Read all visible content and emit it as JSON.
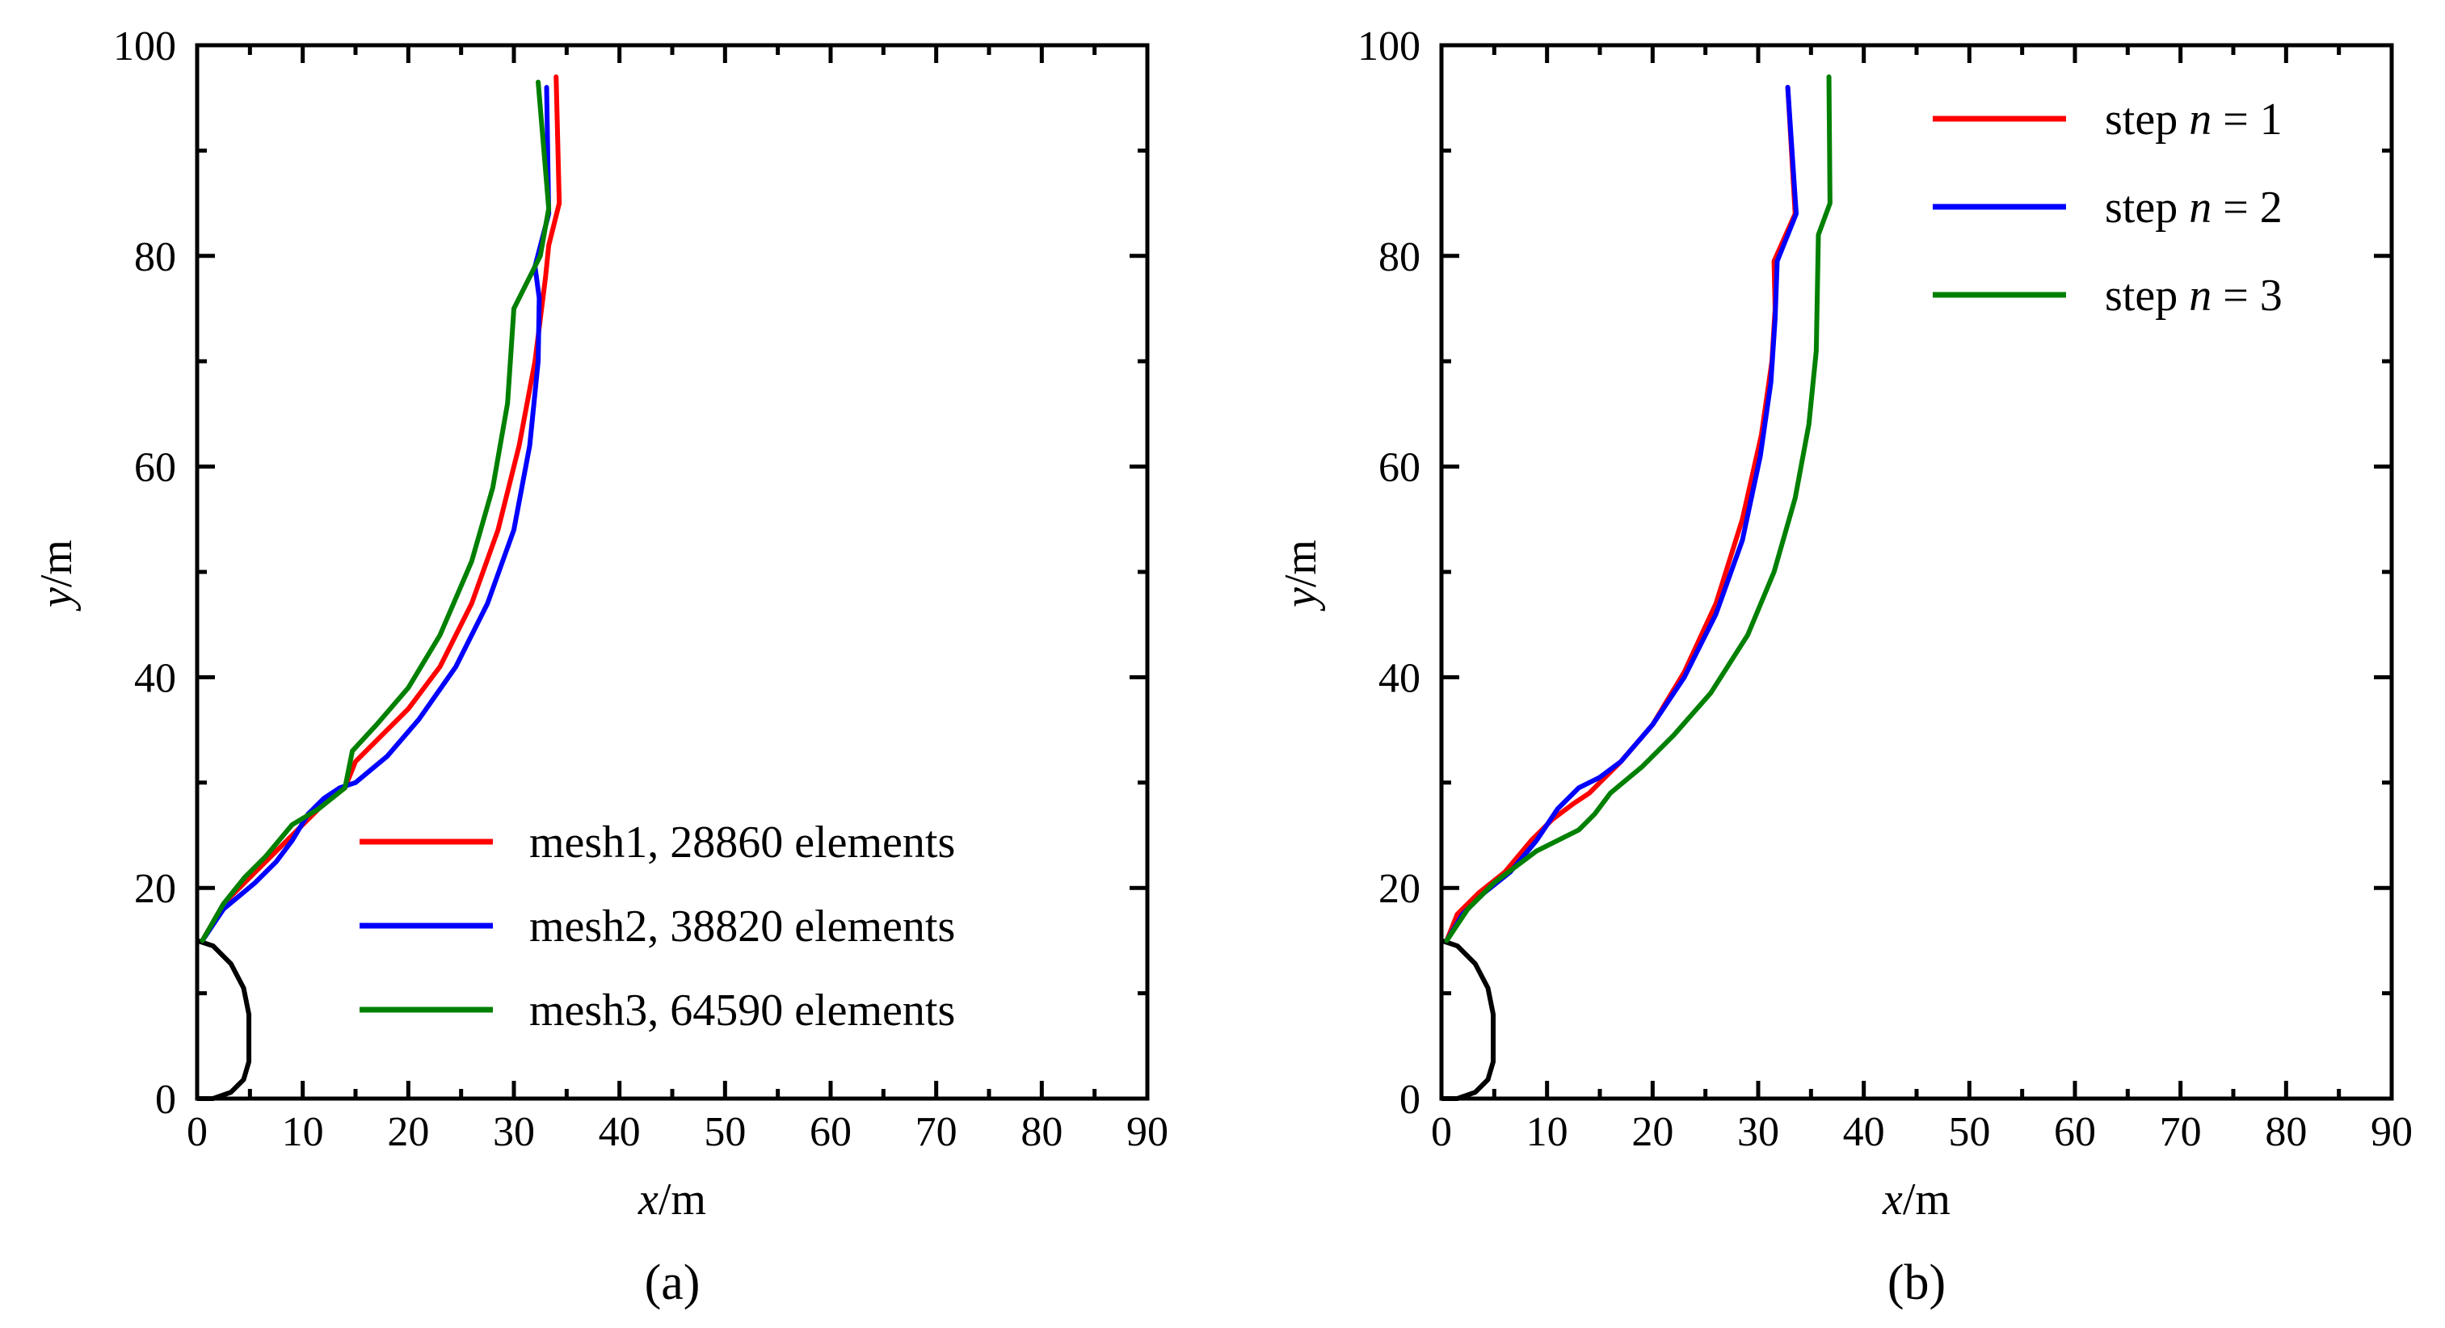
{
  "chart_data": [
    {
      "type": "line",
      "panel": "(a)",
      "xlabel": {
        "var": "x",
        "unit": "/m"
      },
      "ylabel": {
        "var": "y",
        "unit": "/m"
      },
      "xlim": [
        0,
        90
      ],
      "ylim": [
        0,
        100
      ],
      "xticks": [
        0,
        10,
        20,
        30,
        40,
        50,
        60,
        70,
        80,
        90
      ],
      "yticks": [
        0,
        20,
        40,
        60,
        80,
        100
      ],
      "grid": false,
      "legend_position": "bottom-right",
      "tunnel_outline": {
        "x": [
          0,
          1.5,
          3.2,
          4.4,
          4.9,
          4.9,
          4.4,
          3.2,
          1.5,
          0
        ],
        "y": [
          15,
          14.5,
          12.8,
          10.5,
          8,
          3.5,
          1.8,
          0.6,
          0,
          0
        ]
      },
      "series": [
        {
          "name": "mesh1, 28860 elements",
          "legend_label": "mesh1, 28860 elements",
          "color": "#ff0000",
          "x": [
            0.5,
            2.5,
            4.5,
            7,
            9.5,
            12,
            14,
            15,
            17,
            20,
            23,
            26,
            28.5,
            30.5,
            32,
            33,
            33.3,
            34.3,
            34.0
          ],
          "y": [
            15,
            18.5,
            20.5,
            23,
            25.5,
            28,
            29.5,
            32,
            34,
            37,
            41,
            47,
            54,
            62,
            70,
            78,
            81,
            85,
            97
          ]
        },
        {
          "name": "mesh2, 38820 elements",
          "legend_label": "mesh2, 38820 elements",
          "color": "#0000ff",
          "x": [
            0.5,
            2.5,
            5.5,
            7.5,
            9,
            10.5,
            12,
            13.5,
            15,
            18,
            21,
            24.5,
            27.5,
            30,
            31.5,
            32.3,
            32.4,
            32.0,
            33.3,
            33.1
          ],
          "y": [
            15,
            18,
            20.5,
            22.5,
            24.5,
            27,
            28.5,
            29.5,
            30,
            32.5,
            36,
            41,
            47,
            54,
            62,
            70,
            76,
            79,
            84,
            96
          ]
        },
        {
          "name": "mesh3, 64590 elements",
          "legend_label": "mesh3, 64590 elements",
          "color": "#008000",
          "x": [
            0.5,
            2.5,
            4.5,
            6.5,
            9,
            11.5,
            14,
            14.7,
            17,
            20,
            23,
            26,
            28,
            29.4,
            30,
            32.5,
            33.3,
            32.3
          ],
          "y": [
            15,
            18.5,
            21,
            23,
            26,
            27.5,
            29.5,
            33,
            35.5,
            39,
            44,
            51,
            58,
            66,
            75,
            80,
            84.5,
            96.5
          ]
        }
      ]
    },
    {
      "type": "line",
      "panel": "(b)",
      "xlabel": {
        "var": "x",
        "unit": "/m"
      },
      "ylabel": {
        "var": "y",
        "unit": "/m"
      },
      "xlim": [
        0,
        90
      ],
      "ylim": [
        0,
        100
      ],
      "xticks": [
        0,
        10,
        20,
        30,
        40,
        50,
        60,
        70,
        80,
        90
      ],
      "yticks": [
        0,
        20,
        40,
        60,
        80,
        100
      ],
      "grid": false,
      "legend_position": "top-right",
      "tunnel_outline": {
        "x": [
          0,
          1.5,
          3.2,
          4.4,
          4.9,
          4.9,
          4.4,
          3.2,
          1.5,
          0
        ],
        "y": [
          15,
          14.5,
          12.8,
          10.5,
          8,
          3.5,
          1.8,
          0.6,
          0,
          0
        ]
      },
      "series": [
        {
          "name": "step n=1",
          "legend_label": {
            "prefix": "step ",
            "var": "n",
            "suffix": " = 1"
          },
          "color": "#ff0000",
          "x": [
            0.5,
            1.5,
            3.5,
            6,
            8.5,
            10.5,
            12.5,
            14,
            15,
            17,
            20,
            23,
            26,
            28.5,
            30.3,
            31.3,
            31.6,
            31.5,
            33.5,
            32.8
          ],
          "y": [
            15,
            17.5,
            19.5,
            21.5,
            24.5,
            26.5,
            28,
            29,
            30,
            32,
            35.5,
            40.5,
            47,
            55,
            63,
            70,
            75,
            79.5,
            84,
            96
          ]
        },
        {
          "name": "step n=2",
          "legend_label": {
            "prefix": "step ",
            "var": "n",
            "suffix": " = 2"
          },
          "color": "#0000ff",
          "x": [
            0.5,
            2,
            4,
            6.5,
            9,
            11,
            13,
            15,
            17,
            20,
            23,
            26,
            28.5,
            30.2,
            31.2,
            31.6,
            31.8,
            33.6,
            32.8
          ],
          "y": [
            15,
            17.5,
            19.5,
            21.5,
            24.5,
            27.5,
            29.5,
            30.5,
            32,
            35.5,
            40,
            46,
            53,
            61,
            68,
            74,
            79.5,
            84,
            96
          ]
        },
        {
          "name": "step n=3",
          "legend_label": {
            "prefix": "step ",
            "var": "n",
            "suffix": " = 3"
          },
          "color": "#008000",
          "x": [
            0.5,
            2.5,
            5,
            9,
            13,
            14.5,
            16,
            19,
            22,
            25.5,
            29,
            31.5,
            33.5,
            34.8,
            35.5,
            35.7,
            36.8,
            36.7
          ],
          "y": [
            15,
            18,
            20.5,
            23.5,
            25.5,
            27,
            29,
            31.5,
            34.5,
            38.5,
            44,
            50,
            57,
            64,
            71,
            82,
            85,
            97
          ]
        }
      ]
    }
  ]
}
